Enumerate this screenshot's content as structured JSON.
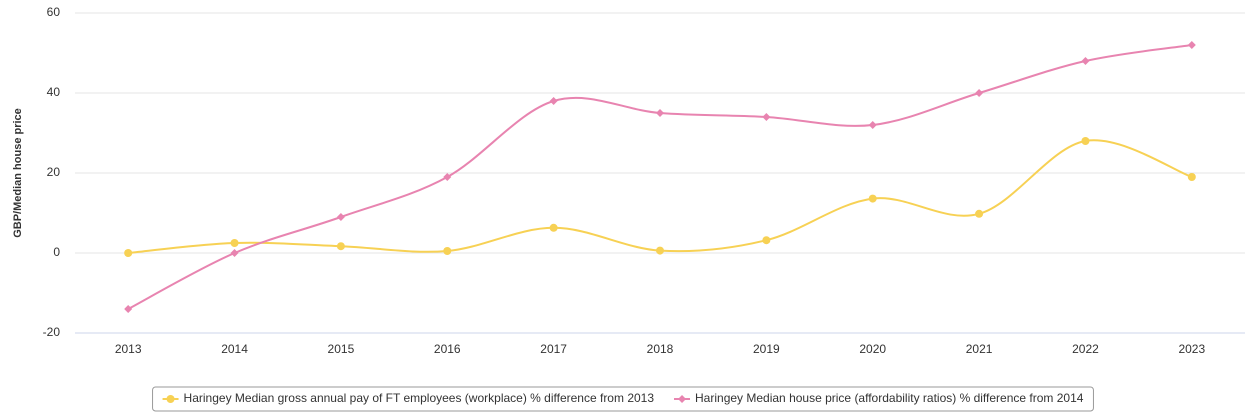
{
  "chart_data": {
    "type": "line",
    "y_label": "GBP/Median house price",
    "categories": [
      "2013",
      "2014",
      "2015",
      "2016",
      "2017",
      "2018",
      "2019",
      "2020",
      "2021",
      "2022",
      "2023"
    ],
    "series": [
      {
        "name": "Haringey Median gross annual pay of FT employees (workplace) % difference from 2013",
        "color": "#f7d154",
        "marker": "circle",
        "values": [
          0,
          2.5,
          1.7,
          0.5,
          6.3,
          0.6,
          3.2,
          13.6,
          9.8,
          28,
          19
        ]
      },
      {
        "name": "Haringey Median house price (affordability ratios) % difference from 2014",
        "color": "#e884b0",
        "marker": "diamond",
        "values": [
          -14,
          0,
          9,
          19,
          38,
          35,
          34,
          32,
          40,
          48,
          52
        ]
      }
    ],
    "ylim": [
      -20,
      60
    ],
    "yticks": [
      -20,
      0,
      20,
      40,
      60
    ],
    "grid": true,
    "legend": "bottom"
  }
}
